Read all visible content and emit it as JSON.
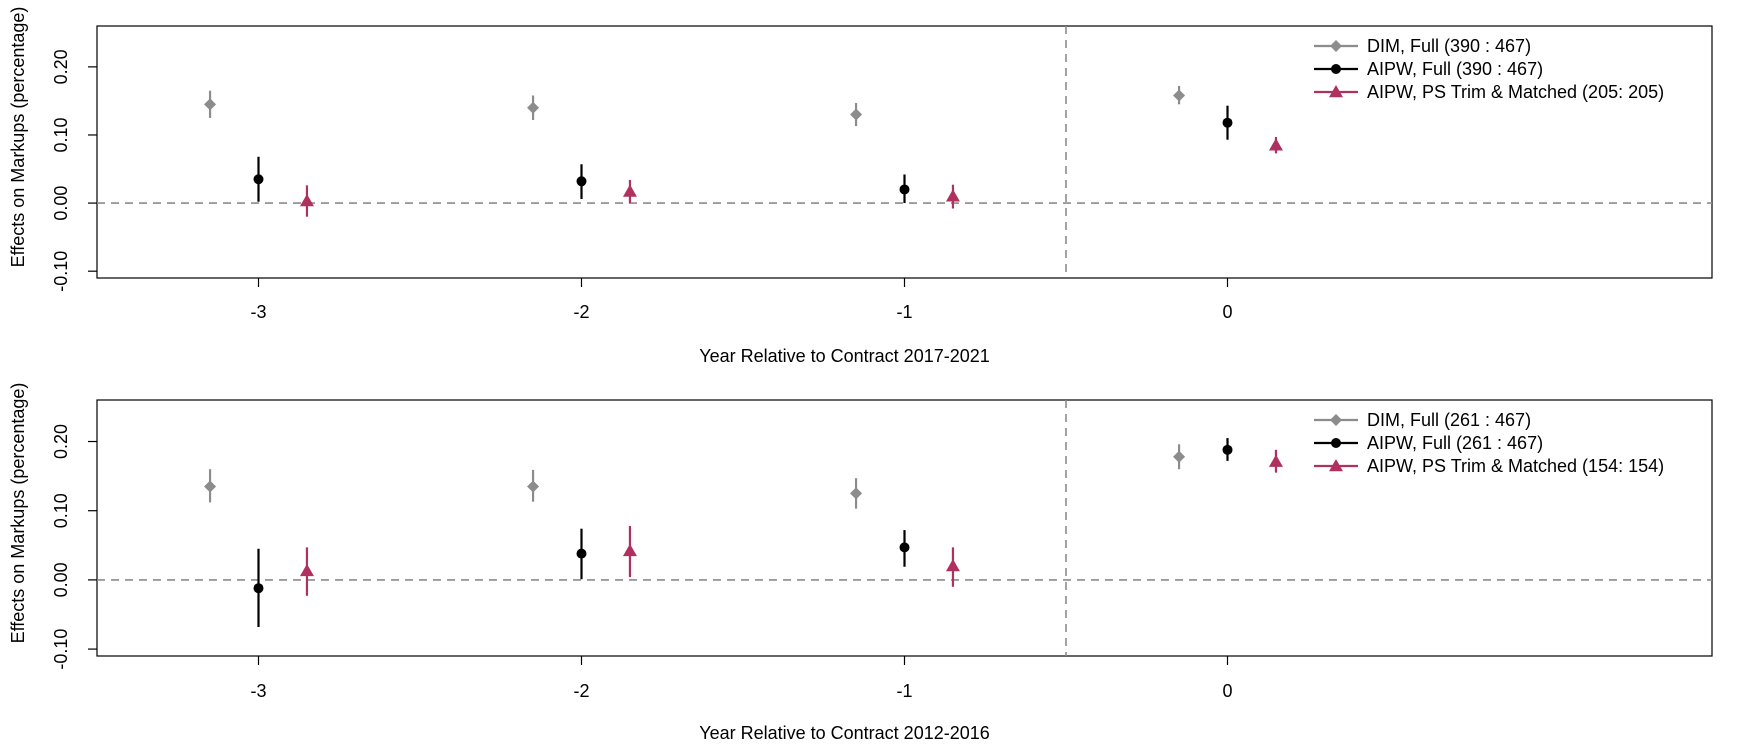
{
  "chart_data": [
    {
      "type": "scatter",
      "xlabel": "Year Relative to Contract 2017-2021",
      "ylabel": "Effects on Markups (percentage)",
      "x_ticks": [
        -3,
        -2,
        -1,
        0
      ],
      "y_ticks": [
        -0.1,
        0.0,
        0.1,
        0.2
      ],
      "y_tick_labels": [
        "-0.10",
        "0.00",
        "0.10",
        "0.20"
      ],
      "xlim": [
        -3.5,
        1.5
      ],
      "ylim": [
        -0.11,
        0.26
      ],
      "ref_hline": 0,
      "ref_vline": -0.5,
      "legend_position": "top-right",
      "series": [
        {
          "name": "DIM,  Full (390 : 467)",
          "color": "#8c8c8c",
          "marker": "diamond",
          "offset": -0.15,
          "x": [
            -3,
            -2,
            -1,
            0
          ],
          "y": [
            0.145,
            0.14,
            0.13,
            0.158
          ],
          "ci_low": [
            0.125,
            0.122,
            0.113,
            0.145
          ],
          "ci_high": [
            0.165,
            0.158,
            0.147,
            0.172
          ]
        },
        {
          "name": "AIPW, Full (390 : 467)",
          "color": "#000000",
          "marker": "circle",
          "offset": 0,
          "x": [
            -3,
            -2,
            -1,
            0
          ],
          "y": [
            0.035,
            0.032,
            0.02,
            0.118
          ],
          "ci_low": [
            0.002,
            0.006,
            0.0,
            0.093
          ],
          "ci_high": [
            0.068,
            0.057,
            0.042,
            0.143
          ]
        },
        {
          "name": "AIPW, PS Trim & Matched (205: 205)",
          "color": "#b03060",
          "marker": "triangle",
          "offset": 0.15,
          "x": [
            -3,
            -2,
            -1,
            0
          ],
          "y": [
            0.003,
            0.017,
            0.01,
            0.085
          ],
          "ci_low": [
            -0.02,
            0.0,
            -0.008,
            0.073
          ],
          "ci_high": [
            0.026,
            0.034,
            0.027,
            0.097
          ]
        }
      ]
    },
    {
      "type": "scatter",
      "xlabel": "Year Relative to Contract 2012-2016",
      "ylabel": "Effects on Markups (percentage)",
      "x_ticks": [
        -3,
        -2,
        -1,
        0
      ],
      "y_ticks": [
        -0.1,
        0.0,
        0.1,
        0.2
      ],
      "y_tick_labels": [
        "-0.10",
        "0.00",
        "0.10",
        "0.20"
      ],
      "xlim": [
        -3.5,
        1.5
      ],
      "ylim": [
        -0.11,
        0.26
      ],
      "ref_hline": 0,
      "ref_vline": -0.5,
      "legend_position": "top-right",
      "series": [
        {
          "name": "DIM,  Full (261 : 467)",
          "color": "#8c8c8c",
          "marker": "diamond",
          "offset": -0.15,
          "x": [
            -3,
            -2,
            -1,
            0
          ],
          "y": [
            0.135,
            0.135,
            0.125,
            0.178
          ],
          "ci_low": [
            0.112,
            0.113,
            0.103,
            0.16
          ],
          "ci_high": [
            0.16,
            0.159,
            0.147,
            0.196
          ]
        },
        {
          "name": "AIPW, Full (261 : 467)",
          "color": "#000000",
          "marker": "circle",
          "offset": 0,
          "x": [
            -3,
            -2,
            -1,
            0
          ],
          "y": [
            -0.012,
            0.038,
            0.047,
            0.188
          ],
          "ci_low": [
            -0.068,
            0.001,
            0.019,
            0.172
          ],
          "ci_high": [
            0.045,
            0.074,
            0.072,
            0.205
          ]
        },
        {
          "name": "AIPW, PS Trim & Matched (154: 154)",
          "color": "#b03060",
          "marker": "triangle",
          "offset": 0.15,
          "x": [
            -3,
            -2,
            -1,
            0
          ],
          "y": [
            0.013,
            0.042,
            0.02,
            0.171
          ],
          "ci_low": [
            -0.023,
            0.004,
            -0.01,
            0.155
          ],
          "ci_high": [
            0.047,
            0.078,
            0.047,
            0.188
          ]
        }
      ]
    }
  ]
}
